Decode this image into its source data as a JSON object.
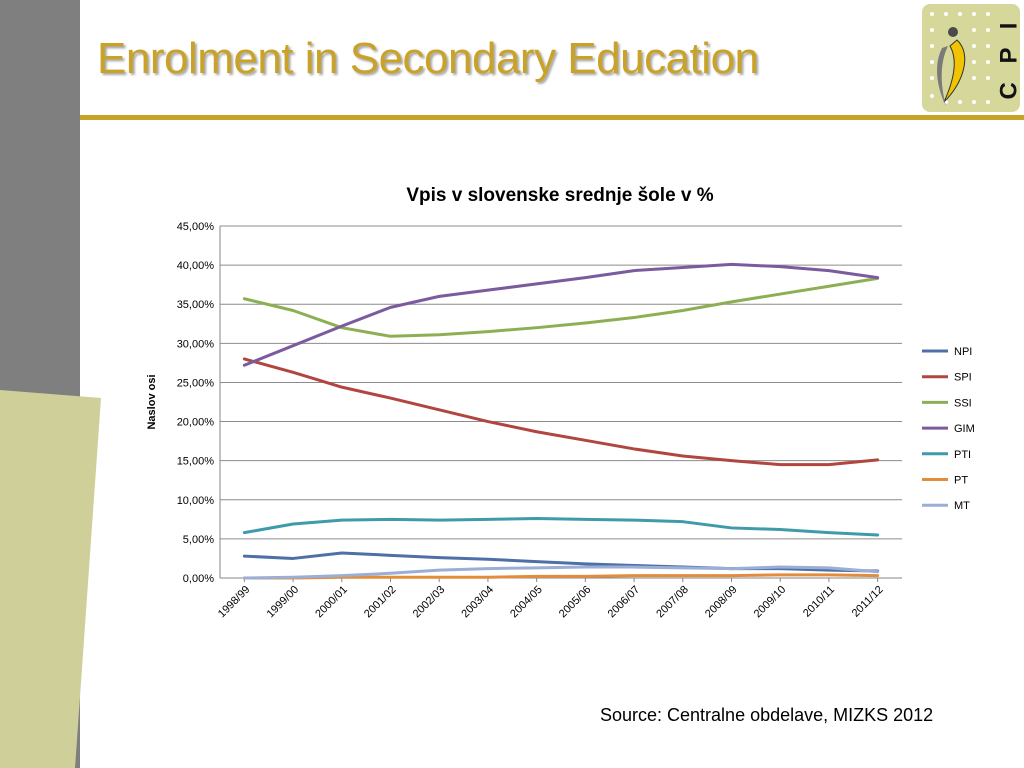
{
  "slide": {
    "title": "Enrolment in Secondary Education",
    "source": "Source: Centralne obdelave, MIZKS 2012",
    "accent_color": "#c9a227",
    "sidebar_color": "#7f7f7f",
    "panel_color": "#cfcf9a"
  },
  "logo": {
    "text": "C P I",
    "background": "#d5d89a"
  },
  "chart_data": {
    "type": "line",
    "title": "Vpis v slovenske srednje šole v %",
    "xlabel": "",
    "ylabel": "Naslov osi",
    "ylim": [
      0,
      45
    ],
    "grid": true,
    "legend_position": "right",
    "y_ticks": [
      "0,00%",
      "5,00%",
      "10,00%",
      "15,00%",
      "20,00%",
      "25,00%",
      "30,00%",
      "35,00%",
      "40,00%",
      "45,00%"
    ],
    "categories": [
      "1998/99",
      "1999/00",
      "2000/01",
      "2001/02",
      "2002/03",
      "2003/04",
      "2004/05",
      "2005/06",
      "2006/07",
      "2007/08",
      "2008/09",
      "2009/10",
      "2010/11",
      "2011/12"
    ],
    "series": [
      {
        "name": "NPI",
        "color": "#4f6fa8",
        "values": [
          2.8,
          2.5,
          3.2,
          2.9,
          2.6,
          2.4,
          2.1,
          1.8,
          1.6,
          1.4,
          1.2,
          1.2,
          1.0,
          0.9
        ]
      },
      {
        "name": "SPI",
        "color": "#b0463f",
        "values": [
          28.0,
          26.3,
          24.4,
          23.0,
          21.5,
          20.0,
          18.7,
          17.6,
          16.5,
          15.6,
          15.0,
          14.5,
          14.5,
          15.1
        ]
      },
      {
        "name": "SSI",
        "color": "#8daf54",
        "values": [
          35.7,
          34.2,
          32.0,
          30.9,
          31.1,
          31.5,
          32.0,
          32.6,
          33.3,
          34.2,
          35.3,
          36.3,
          37.3,
          38.3
        ]
      },
      {
        "name": "GIM",
        "color": "#7b5a9e",
        "values": [
          27.2,
          29.7,
          32.2,
          34.6,
          36.0,
          36.8,
          37.6,
          38.4,
          39.3,
          39.7,
          40.1,
          39.8,
          39.3,
          38.4
        ]
      },
      {
        "name": "PTI",
        "color": "#3f9aaa",
        "values": [
          5.8,
          6.9,
          7.4,
          7.5,
          7.4,
          7.5,
          7.6,
          7.5,
          7.4,
          7.2,
          6.4,
          6.2,
          5.8,
          5.5
        ]
      },
      {
        "name": "PT",
        "color": "#e38d3c",
        "values": [
          0.0,
          0.0,
          0.1,
          0.1,
          0.1,
          0.1,
          0.2,
          0.2,
          0.3,
          0.3,
          0.3,
          0.4,
          0.4,
          0.3
        ]
      },
      {
        "name": "MT",
        "color": "#9aaed6",
        "values": [
          0.0,
          0.1,
          0.3,
          0.6,
          1.0,
          1.2,
          1.3,
          1.4,
          1.4,
          1.3,
          1.2,
          1.4,
          1.3,
          0.8
        ]
      }
    ]
  }
}
